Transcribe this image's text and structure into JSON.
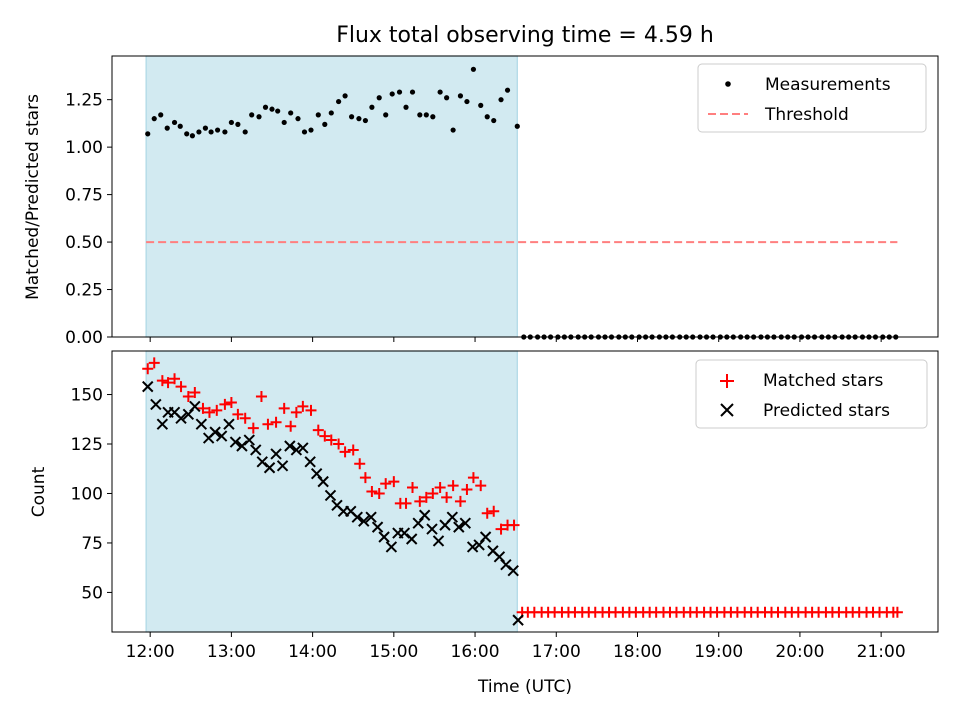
{
  "title": "Flux total observing time = 4.59 h",
  "colors": {
    "shade": "#add8e6",
    "measurement": "#000000",
    "threshold": "#ff7f7f",
    "matched": "#ff0000",
    "predicted": "#000000"
  },
  "chart_data": [
    {
      "type": "scatter",
      "ylabel": "Matched/Predicted stars",
      "xlim": [
        11.53,
        21.7
      ],
      "ylim": [
        0,
        1.48
      ],
      "yticks": [
        0,
        0.25,
        0.5,
        0.75,
        1.0,
        1.25
      ],
      "ytick_labels": [
        "0.00",
        "0.25",
        "0.50",
        "0.75",
        "1.00",
        "1.25"
      ],
      "shaded_span": [
        11.95,
        16.52
      ],
      "legend": [
        "Measurements",
        "Threshold"
      ],
      "threshold": {
        "name": "Threshold",
        "y": 0.5,
        "x": [
          11.95,
          21.2
        ]
      },
      "measurements": {
        "x": [
          11.97,
          12.05,
          12.13,
          12.21,
          12.3,
          12.37,
          12.45,
          12.52,
          12.6,
          12.68,
          12.75,
          12.83,
          12.92,
          13.0,
          13.08,
          13.17,
          13.25,
          13.34,
          13.42,
          13.5,
          13.57,
          13.65,
          13.73,
          13.82,
          13.9,
          13.98,
          14.07,
          14.15,
          14.23,
          14.32,
          14.4,
          14.48,
          14.57,
          14.65,
          14.73,
          14.82,
          14.9,
          14.98,
          15.07,
          15.15,
          15.23,
          15.32,
          15.4,
          15.48,
          15.57,
          15.65,
          15.73,
          15.82,
          15.9,
          15.98,
          16.07,
          16.15,
          16.23,
          16.32,
          16.4,
          16.52,
          16.6,
          16.68,
          16.77,
          16.85,
          16.93,
          17.02,
          17.1,
          17.18,
          17.27,
          17.35,
          17.43,
          17.52,
          17.6,
          17.68,
          17.77,
          17.85,
          17.93,
          18.02,
          18.1,
          18.18,
          18.27,
          18.35,
          18.43,
          18.52,
          18.6,
          18.68,
          18.77,
          18.85,
          18.93,
          19.02,
          19.1,
          19.18,
          19.27,
          19.35,
          19.43,
          19.52,
          19.6,
          19.68,
          19.77,
          19.85,
          19.93,
          20.02,
          20.1,
          20.18,
          20.27,
          20.35,
          20.43,
          20.52,
          20.6,
          20.68,
          20.77,
          20.85,
          20.93,
          21.02,
          21.1,
          21.18
        ],
        "y": [
          1.07,
          1.15,
          1.17,
          1.1,
          1.13,
          1.11,
          1.07,
          1.06,
          1.08,
          1.1,
          1.08,
          1.09,
          1.08,
          1.13,
          1.12,
          1.08,
          1.17,
          1.16,
          1.21,
          1.2,
          1.19,
          1.13,
          1.18,
          1.15,
          1.08,
          1.09,
          1.17,
          1.12,
          1.18,
          1.24,
          1.27,
          1.16,
          1.15,
          1.14,
          1.21,
          1.26,
          1.17,
          1.28,
          1.29,
          1.21,
          1.29,
          1.17,
          1.17,
          1.16,
          1.29,
          1.26,
          1.09,
          1.27,
          1.24,
          1.41,
          1.22,
          1.16,
          1.14,
          1.25,
          1.3,
          1.11,
          0,
          0,
          0,
          0,
          0,
          0,
          0,
          0,
          0,
          0,
          0,
          0,
          0,
          0,
          0,
          0,
          0,
          0,
          0,
          0,
          0,
          0,
          0,
          0,
          0,
          0,
          0,
          0,
          0,
          0,
          0,
          0,
          0,
          0,
          0,
          0,
          0,
          0,
          0,
          0,
          0,
          0,
          0,
          0,
          0,
          0,
          0,
          0,
          0,
          0,
          0,
          0,
          0,
          0,
          0,
          0
        ]
      }
    },
    {
      "type": "scatter",
      "ylabel": "Count",
      "xlabel": "Time (UTC)",
      "xlim": [
        11.53,
        21.7
      ],
      "ylim": [
        30,
        172
      ],
      "yticks": [
        50,
        75,
        100,
        125,
        150
      ],
      "ytick_labels": [
        "50",
        "75",
        "100",
        "125",
        "150"
      ],
      "xticks": [
        12,
        13,
        14,
        15,
        16,
        17,
        18,
        19,
        20,
        21
      ],
      "xtick_labels": [
        "12:00",
        "13:00",
        "14:00",
        "15:00",
        "16:00",
        "17:00",
        "18:00",
        "19:00",
        "20:00",
        "21:00"
      ],
      "shaded_span": [
        11.95,
        16.52
      ],
      "legend": [
        "Matched stars",
        "Predicted stars"
      ],
      "series": [
        {
          "name": "Matched stars",
          "marker": "+",
          "x": [
            11.97,
            12.05,
            12.15,
            12.22,
            12.3,
            12.38,
            12.47,
            12.55,
            12.65,
            12.73,
            12.82,
            12.92,
            13.0,
            13.08,
            13.17,
            13.27,
            13.37,
            13.45,
            13.55,
            13.65,
            13.73,
            13.8,
            13.88,
            13.98,
            14.07,
            14.15,
            14.23,
            14.32,
            14.4,
            14.5,
            14.58,
            14.65,
            14.73,
            14.82,
            14.9,
            15.0,
            15.08,
            15.15,
            15.23,
            15.32,
            15.4,
            15.48,
            15.57,
            15.65,
            15.73,
            15.82,
            15.9,
            15.98,
            16.07,
            16.15,
            16.23,
            16.32,
            16.4,
            16.48,
            16.58,
            16.65,
            16.73,
            16.82,
            16.9,
            16.98,
            17.07,
            17.15,
            17.23,
            17.32,
            17.4,
            17.48,
            17.57,
            17.65,
            17.73,
            17.82,
            17.9,
            17.98,
            18.07,
            18.15,
            18.23,
            18.32,
            18.4,
            18.48,
            18.57,
            18.65,
            18.73,
            18.82,
            18.9,
            18.98,
            19.07,
            19.15,
            19.23,
            19.32,
            19.4,
            19.48,
            19.57,
            19.65,
            19.73,
            19.82,
            19.9,
            19.98,
            20.07,
            20.15,
            20.23,
            20.32,
            20.4,
            20.48,
            20.57,
            20.65,
            20.73,
            20.82,
            20.9,
            20.98,
            21.07,
            21.15,
            21.2
          ],
          "y": [
            163,
            166,
            157,
            156,
            158,
            154,
            149,
            151,
            143,
            141,
            142,
            145,
            146,
            140,
            138,
            133,
            149,
            135,
            136,
            143,
            134,
            141,
            144,
            142,
            132,
            129,
            127,
            125,
            121,
            122,
            115,
            108,
            101,
            100,
            105,
            106,
            95,
            95,
            103,
            96,
            98,
            100,
            103,
            98,
            104,
            96,
            102,
            108,
            104,
            90,
            91,
            82,
            84,
            84,
            40,
            40,
            40,
            40,
            40,
            40,
            40,
            40,
            40,
            40,
            40,
            40,
            40,
            40,
            40,
            40,
            40,
            40,
            40,
            40,
            40,
            40,
            40,
            40,
            40,
            40,
            40,
            40,
            40,
            40,
            40,
            40,
            40,
            40,
            40,
            40,
            40,
            40,
            40,
            40,
            40,
            40,
            40,
            40,
            40,
            40,
            40,
            40,
            40,
            40,
            40,
            40,
            40,
            40,
            40,
            40,
            40
          ]
        },
        {
          "name": "Predicted stars",
          "marker": "x",
          "x": [
            11.97,
            12.07,
            12.15,
            12.22,
            12.3,
            12.38,
            12.47,
            12.55,
            12.63,
            12.72,
            12.8,
            12.88,
            12.97,
            13.05,
            13.13,
            13.22,
            13.3,
            13.38,
            13.47,
            13.55,
            13.63,
            13.72,
            13.8,
            13.88,
            13.97,
            14.05,
            14.13,
            14.22,
            14.3,
            14.38,
            14.47,
            14.55,
            14.63,
            14.72,
            14.8,
            14.88,
            14.97,
            15.05,
            15.13,
            15.22,
            15.3,
            15.38,
            15.47,
            15.55,
            15.63,
            15.72,
            15.8,
            15.88,
            15.97,
            16.05,
            16.13,
            16.22,
            16.3,
            16.38,
            16.47,
            16.53
          ],
          "y": [
            154,
            145,
            135,
            141,
            141,
            138,
            140,
            144,
            135,
            128,
            131,
            129,
            135,
            126,
            124,
            127,
            122,
            116,
            113,
            120,
            114,
            124,
            122,
            123,
            116,
            110,
            106,
            99,
            94,
            91,
            91,
            88,
            86,
            88,
            83,
            78,
            73,
            80,
            80,
            77,
            85,
            89,
            82,
            76,
            84,
            88,
            83,
            85,
            73,
            74,
            78,
            71,
            68,
            64,
            61,
            36
          ]
        }
      ]
    }
  ]
}
